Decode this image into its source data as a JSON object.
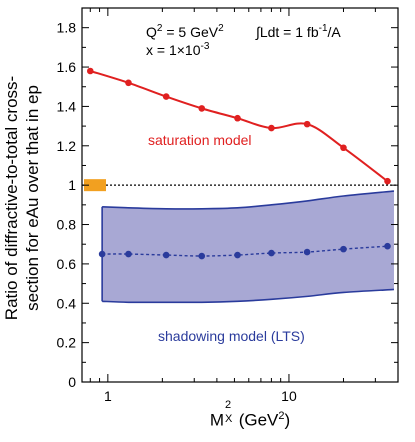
{
  "chart_data": {
    "type": "line",
    "x_scale": "log",
    "xlim": [
      0.72,
      40
    ],
    "ylim": [
      0,
      1.9
    ],
    "y_ticks": [
      "0",
      "0.2",
      "0.4",
      "0.6",
      "0.8",
      "1",
      "1.2",
      "1.4",
      "1.6",
      "1.8"
    ],
    "x_ticks": [
      "1",
      "10"
    ],
    "ylabel_line1": "Ratio of diffractive-to-total cross-",
    "ylabel_line2": "section for eAu over that in ep",
    "xlabel_main": "M",
    "xlabel_sup": "2",
    "xlabel_sub": "X",
    "xlabel_units": " (GeV",
    "xlabel_units_sup": "2",
    "xlabel_units_end": ")",
    "annotations": {
      "q2_text": "Q",
      "q2_sup": "2",
      "q2_rest": " = 5 GeV",
      "q2_units_sup": "2",
      "x_text": "x = 1×10",
      "x_sup": "-3",
      "lumi_text": "∫Ldt = 1 fb",
      "lumi_sup": "-1",
      "lumi_rest": "/A"
    },
    "reference_line": 1.0,
    "series": [
      {
        "name": "saturation model",
        "color": "#e02020",
        "x": [
          0.8,
          1.3,
          2.1,
          3.3,
          5.2,
          8.0,
          12.6,
          20.0,
          35.0
        ],
        "y": [
          1.58,
          1.52,
          1.45,
          1.39,
          1.34,
          1.29,
          1.31,
          1.19,
          1.02
        ]
      },
      {
        "name": "shadowing model (LTS)",
        "color": "#2a3b9c",
        "x": [
          0.93,
          1.3,
          2.1,
          3.3,
          5.2,
          8.0,
          12.6,
          20.0,
          35.0
        ],
        "y": [
          0.65,
          0.65,
          0.645,
          0.64,
          0.645,
          0.655,
          0.66,
          0.675,
          0.69
        ],
        "band_x": [
          0.93,
          1.3,
          2.1,
          3.3,
          5.2,
          8.0,
          12.6,
          20.0,
          38.0
        ],
        "band_upper": [
          0.89,
          0.885,
          0.88,
          0.88,
          0.885,
          0.9,
          0.92,
          0.945,
          0.97
        ],
        "band_lower": [
          0.41,
          0.405,
          0.405,
          0.405,
          0.41,
          0.42,
          0.435,
          0.455,
          0.47
        ],
        "band_color": "#a8a8d4"
      }
    ],
    "reference_box": {
      "x": 0.8,
      "y": 1.0,
      "color": "#f2a020"
    }
  }
}
